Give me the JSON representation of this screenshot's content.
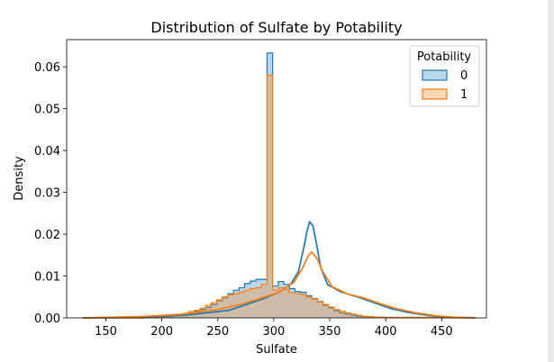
{
  "chart_data": {
    "type": "histogram",
    "title": "Distribution of Sulfate by Potability",
    "xlabel": "Sulfate",
    "ylabel": "Density",
    "xlim": [
      115,
      490
    ],
    "ylim": [
      0,
      0.0665
    ],
    "x_ticks": [
      150,
      200,
      250,
      300,
      350,
      400,
      450
    ],
    "y_ticks": [
      0.0,
      0.01,
      0.02,
      0.03,
      0.04,
      0.05,
      0.06
    ],
    "y_tick_labels": [
      "0.00",
      "0.01",
      "0.02",
      "0.03",
      "0.04",
      "0.05",
      "0.06"
    ],
    "bin_start": 129,
    "bin_width": 5,
    "legend": {
      "title": "Potability",
      "position": "top-right"
    },
    "series": [
      {
        "name": "0",
        "color": "#1f77b4",
        "fill": "#1f77b4",
        "fill_opacity": 0.3,
        "hist": [
          0,
          0,
          0,
          0,
          0,
          0,
          0,
          0,
          0,
          0,
          0,
          0.0001,
          0.0001,
          0.0001,
          0.0002,
          0.0003,
          0.0005,
          0.0006,
          0.0008,
          0.0012,
          0.0016,
          0.002,
          0.0025,
          0.0032,
          0.0041,
          0.0048,
          0.0058,
          0.0066,
          0.0072,
          0.0082,
          0.0088,
          0.0092,
          0.0092,
          0.0633,
          0.0076,
          0.0087,
          0.008,
          0.007,
          0.0063,
          0.0061,
          0.0053,
          0.0046,
          0.0039,
          0.003,
          0.0024,
          0.0017,
          0.0012,
          0.0009,
          0.0006,
          0.0004,
          0.0003,
          0.0002,
          0.0001,
          0.0001,
          0.0001,
          0.0001,
          0.0001,
          0.0001,
          0.0001,
          0.0001,
          0.0001,
          0.0001,
          0.0001,
          0.0001,
          0.0001,
          0.0001,
          0.0001,
          0.0001,
          0.0001,
          0.0001
        ],
        "kde": [
          [
            130,
            0
          ],
          [
            180,
            0.0002
          ],
          [
            220,
            0.0006
          ],
          [
            260,
            0.0018
          ],
          [
            290,
            0.0045
          ],
          [
            305,
            0.0062
          ],
          [
            315,
            0.008
          ],
          [
            322,
            0.011
          ],
          [
            327,
            0.017
          ],
          [
            330,
            0.021
          ],
          [
            332,
            0.023
          ],
          [
            335,
            0.022
          ],
          [
            338,
            0.018
          ],
          [
            342,
            0.012
          ],
          [
            348,
            0.008
          ],
          [
            360,
            0.0062
          ],
          [
            375,
            0.005
          ],
          [
            390,
            0.0036
          ],
          [
            405,
            0.0022
          ],
          [
            420,
            0.0013
          ],
          [
            440,
            0.0005
          ],
          [
            460,
            0.0001
          ],
          [
            480,
            0
          ]
        ]
      },
      {
        "name": "1",
        "color": "#ff7f0e",
        "fill": "#ff7f0e",
        "fill_opacity": 0.3,
        "hist": [
          0,
          0,
          0,
          0,
          0,
          0,
          0,
          0,
          0,
          0,
          0,
          0.0002,
          0.0001,
          0.0002,
          0.0002,
          0.0004,
          0.0006,
          0.0009,
          0.0011,
          0.0015,
          0.0018,
          0.0023,
          0.003,
          0.0036,
          0.0043,
          0.005,
          0.0055,
          0.0058,
          0.0062,
          0.0066,
          0.007,
          0.0072,
          0.008,
          0.058,
          0.0066,
          0.0072,
          0.0068,
          0.006,
          0.0058,
          0.0056,
          0.005,
          0.0045,
          0.0038,
          0.0032,
          0.0026,
          0.002,
          0.0016,
          0.0012,
          0.0009,
          0.0006,
          0.0004,
          0.0003,
          0.0002,
          0.0002,
          0.0001,
          0.0001,
          0.0001,
          0.0001,
          0.0001,
          0.0001,
          0.0001,
          0.0001,
          0.0001,
          0.0001,
          0.0001,
          0.0001,
          0.0001,
          0.0001,
          0.0001,
          0.0001
        ],
        "kde": [
          [
            130,
            0
          ],
          [
            180,
            0.0003
          ],
          [
            220,
            0.0009
          ],
          [
            250,
            0.002
          ],
          [
            270,
            0.0032
          ],
          [
            290,
            0.0048
          ],
          [
            305,
            0.0062
          ],
          [
            318,
            0.0085
          ],
          [
            326,
            0.012
          ],
          [
            331,
            0.015
          ],
          [
            334,
            0.0157
          ],
          [
            338,
            0.0145
          ],
          [
            344,
            0.011
          ],
          [
            352,
            0.0075
          ],
          [
            365,
            0.0058
          ],
          [
            380,
            0.0048
          ],
          [
            395,
            0.0034
          ],
          [
            410,
            0.0022
          ],
          [
            425,
            0.0013
          ],
          [
            445,
            0.0005
          ],
          [
            465,
            0.0001
          ],
          [
            480,
            0
          ]
        ]
      }
    ]
  }
}
